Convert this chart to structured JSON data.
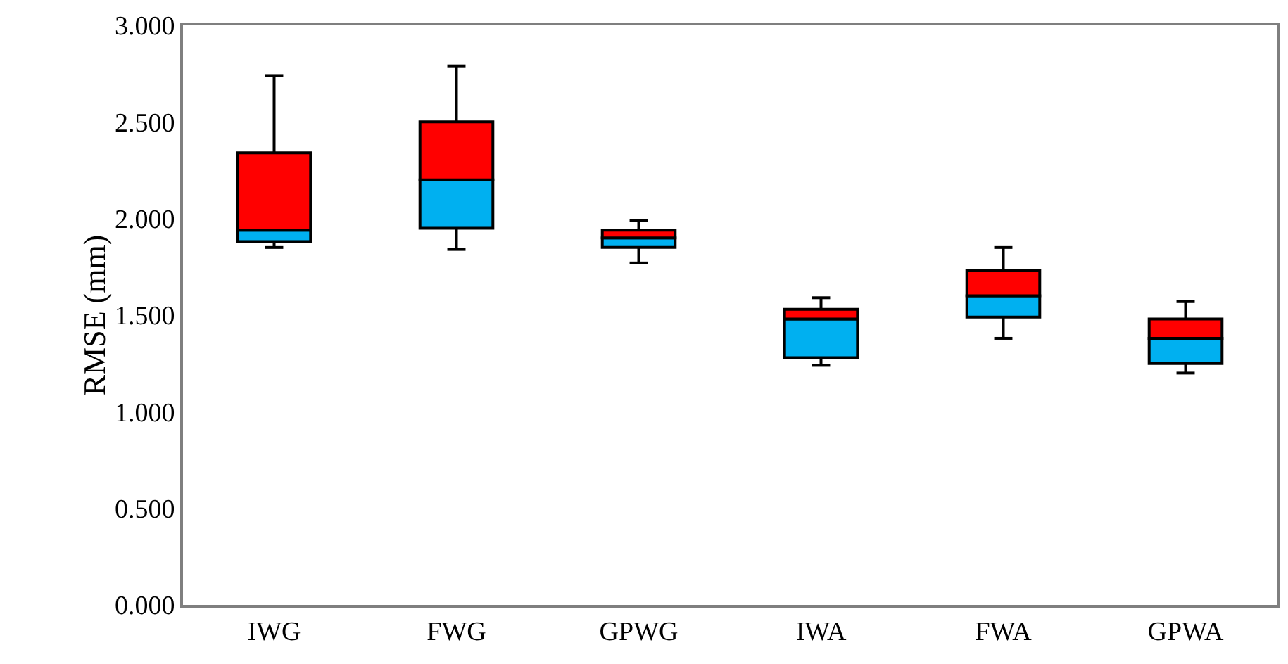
{
  "chart_data": {
    "type": "box",
    "ylabel": "RMSE (mm)",
    "categories": [
      "IWG",
      "FWG",
      "GPWG",
      "IWA",
      "FWA",
      "GPWA"
    ],
    "colors": [
      [
        "#00b0f0",
        "#ff0000"
      ],
      [
        "#00b0f0",
        "#ff0000"
      ],
      [
        "#00b0f0",
        "#ff0000"
      ],
      [
        "#00b0f0",
        "#ff0000"
      ],
      [
        "#00b0f0",
        "#ff0000"
      ],
      [
        "#00b0f0",
        "#ff0000"
      ]
    ],
    "boxes": [
      {
        "low": 1.85,
        "q1": 1.88,
        "median": 1.94,
        "q3": 2.34,
        "high": 2.74
      },
      {
        "low": 1.84,
        "q1": 1.95,
        "median": 2.2,
        "q3": 2.5,
        "high": 2.79
      },
      {
        "low": 1.77,
        "q1": 1.85,
        "median": 1.9,
        "q3": 1.94,
        "high": 1.99
      },
      {
        "low": 1.24,
        "q1": 1.28,
        "median": 1.48,
        "q3": 1.53,
        "high": 1.59
      },
      {
        "low": 1.38,
        "q1": 1.49,
        "median": 1.6,
        "q3": 1.73,
        "high": 1.85
      },
      {
        "low": 1.2,
        "q1": 1.25,
        "median": 1.38,
        "q3": 1.48,
        "high": 1.57
      }
    ],
    "ylim": [
      0,
      3
    ],
    "yticks": [
      {
        "value": 0,
        "label": "0.000"
      },
      {
        "value": 0.5,
        "label": "0.500"
      },
      {
        "value": 1,
        "label": "1.000"
      },
      {
        "value": 1.5,
        "label": "1.500"
      },
      {
        "value": 2,
        "label": "2.000"
      },
      {
        "value": 2.5,
        "label": "2.500"
      },
      {
        "value": 3,
        "label": "3.000"
      }
    ],
    "grid": false
  }
}
